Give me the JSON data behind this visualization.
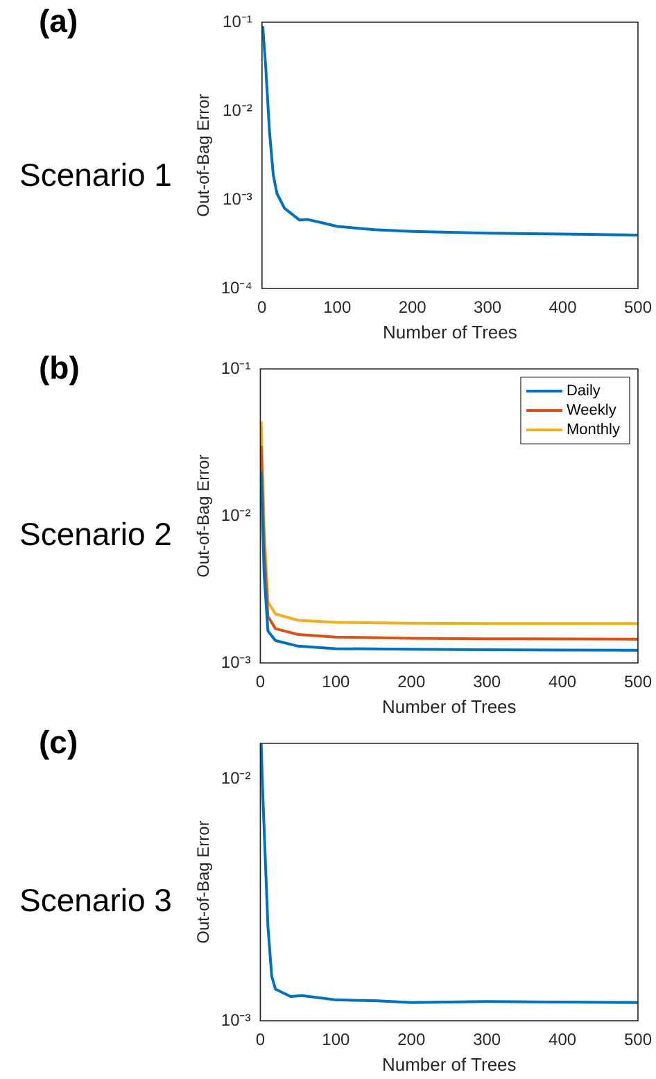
{
  "chart_data": [
    {
      "type": "line",
      "title": "(a)",
      "annotations": [
        "Scenario 1"
      ],
      "xlabel": "Number of Trees",
      "ylabel": "Out-of-Bag Error",
      "log": "y",
      "legend": false,
      "xlim": [
        0,
        500
      ],
      "xticks": [
        0,
        100,
        200,
        300,
        400,
        500
      ],
      "ylim": [
        0.0001,
        0.1
      ],
      "yticks": [
        {
          "value": 0.0001,
          "label": "10⁻⁴"
        },
        {
          "value": 0.001,
          "label": "10⁻³"
        },
        {
          "value": 0.01,
          "label": "10⁻²"
        },
        {
          "value": 0.1,
          "label": "10⁻¹"
        }
      ],
      "series": [
        {
          "color": "#0072bd",
          "x": [
            1,
            5,
            10,
            15,
            20,
            30,
            50,
            60,
            80,
            100,
            150,
            200,
            300,
            400,
            500
          ],
          "values": [
            0.09,
            0.031,
            0.0058,
            0.0019,
            0.00117,
            0.0008,
            0.00059,
            0.0006,
            0.00055,
            0.0005,
            0.00046,
            0.00044,
            0.00042,
            0.00041,
            0.0004
          ]
        }
      ]
    },
    {
      "type": "line",
      "title": "(b)",
      "annotations": [
        "Scenario 2"
      ],
      "xlabel": "Number of Trees",
      "ylabel": "Out-of-Bag Error",
      "log": "y",
      "legend": "top right",
      "xlim": [
        0,
        500
      ],
      "xticks": [
        0,
        100,
        200,
        300,
        400,
        500
      ],
      "ylim": [
        0.001,
        0.1
      ],
      "yticks": [
        {
          "value": 0.001,
          "label": "10⁻³"
        },
        {
          "value": 0.01,
          "label": "10⁻²"
        },
        {
          "value": 0.1,
          "label": "10⁻¹"
        }
      ],
      "series": [
        {
          "name": "Daily",
          "color": "#0072bd",
          "x": [
            1,
            5,
            10,
            20,
            50,
            100,
            200,
            300,
            500
          ],
          "values": [
            0.02,
            0.004,
            0.00165,
            0.00142,
            0.0013,
            0.00125,
            0.00124,
            0.00123,
            0.00122
          ]
        },
        {
          "name": "Weekly",
          "color": "#d95319",
          "x": [
            1,
            5,
            10,
            20,
            50,
            100,
            200,
            300,
            500
          ],
          "values": [
            0.03,
            0.006,
            0.00207,
            0.00171,
            0.00156,
            0.0015,
            0.00147,
            0.00146,
            0.00145
          ]
        },
        {
          "name": "Monthly",
          "color": "#edb120",
          "x": [
            1,
            5,
            10,
            20,
            50,
            100,
            200,
            300,
            500
          ],
          "values": [
            0.044,
            0.008,
            0.0026,
            0.00215,
            0.00195,
            0.00189,
            0.00186,
            0.00185,
            0.00185
          ]
        }
      ]
    },
    {
      "type": "line",
      "title": "(c)",
      "annotations": [
        "Scenario 3"
      ],
      "xlabel": "Number of Trees",
      "ylabel": "Out-of-Bag Error",
      "log": "y",
      "legend": false,
      "xlim": [
        0,
        500
      ],
      "xticks": [
        0,
        100,
        200,
        300,
        400,
        500
      ],
      "ylim": [
        0.001,
        0.014
      ],
      "yticks": [
        {
          "value": 0.001,
          "label": "10⁻³"
        },
        {
          "value": 0.01,
          "label": "10⁻²"
        }
      ],
      "series": [
        {
          "color": "#0072bd",
          "x": [
            1,
            3,
            10,
            15,
            20,
            40,
            55,
            100,
            150,
            200,
            300,
            500
          ],
          "values": [
            0.014,
            0.0089,
            0.00245,
            0.00153,
            0.00135,
            0.00126,
            0.00127,
            0.00122,
            0.00121,
            0.00119,
            0.0012,
            0.00119
          ]
        }
      ]
    }
  ]
}
